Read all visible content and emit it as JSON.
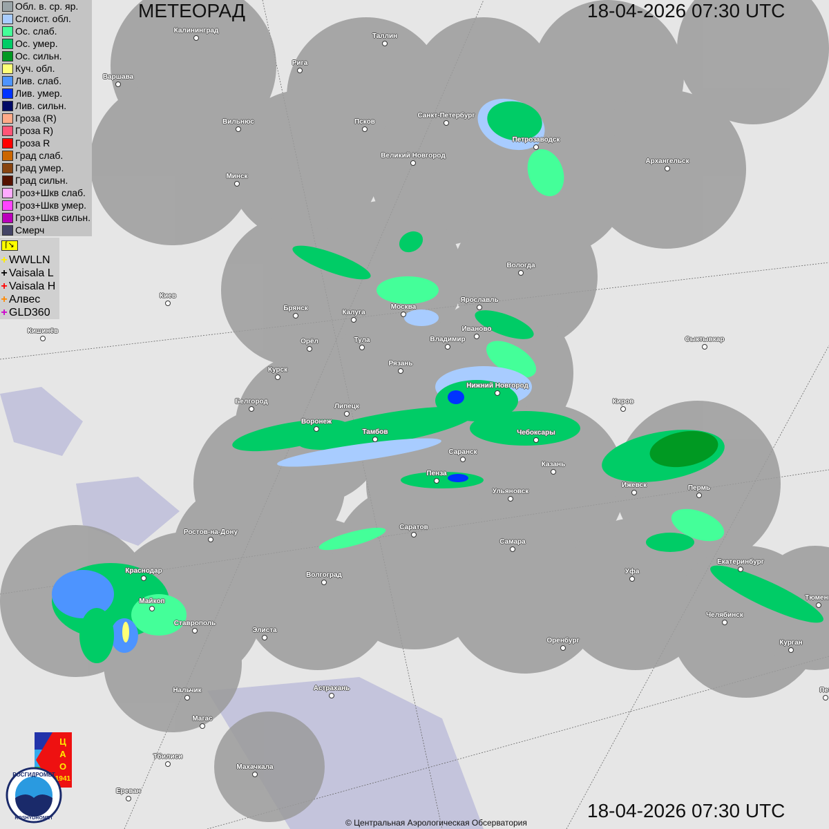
{
  "header": {
    "title": "МЕТЕОРАД",
    "datetime_top": "18-04-2026  07:30 UTC",
    "datetime_bottom": "18-04-2026  07:30 UTC"
  },
  "legend": [
    {
      "label": "Обл. в. ср. яр.",
      "color": "#9aa4a8"
    },
    {
      "label": "Слоист. обл.",
      "color": "#a8ccff"
    },
    {
      "label": "Ос. слаб.",
      "color": "#44ff99"
    },
    {
      "label": "Ос. умер.",
      "color": "#00cc66"
    },
    {
      "label": "Ос. сильн.",
      "color": "#009922"
    },
    {
      "label": "Куч. обл.",
      "color": "#ffff77"
    },
    {
      "label": "Лив. слаб.",
      "color": "#4d94ff"
    },
    {
      "label": "Лив. умер.",
      "color": "#0033ff"
    },
    {
      "label": "Лив. сильн.",
      "color": "#000a66"
    },
    {
      "label": "Гроза (R)",
      "color": "#ffaa88"
    },
    {
      "label": "Гроза R)",
      "color": "#ff5577"
    },
    {
      "label": "Гроза R",
      "color": "#ff0000"
    },
    {
      "label": "Град слаб.",
      "color": "#cc6600"
    },
    {
      "label": "Град умер.",
      "color": "#884411"
    },
    {
      "label": "Град сильн.",
      "color": "#551100"
    },
    {
      "label": "Гроз+Шкв слаб.",
      "color": "#ffaaff"
    },
    {
      "label": "Гроз+Шкв умер.",
      "color": "#ff44ff"
    },
    {
      "label": "Гроз+Шкв сильн.",
      "color": "#bb00bb"
    },
    {
      "label": "Смерч",
      "color": "#444466"
    }
  ],
  "lightning": [
    {
      "label": "WWLLN",
      "color": "#ffee00"
    },
    {
      "label": "Vaisala L",
      "color": "#000000"
    },
    {
      "label": "Vaisala H",
      "color": "#ff0000"
    },
    {
      "label": "Алвес",
      "color": "#ff8800"
    },
    {
      "label": "GLD360",
      "color": "#cc00cc"
    }
  ],
  "cities": [
    "Калининград",
    "Таллин",
    "Рига",
    "Варшава",
    "Санкт-Петербург",
    "Петрозаводск",
    "Вильнюс",
    "Псков",
    "Великий Новгород",
    "Архангельск",
    "Минск",
    "Вологда",
    "Ярославль",
    "Москва",
    "Калуга",
    "Брянск",
    "Киев",
    "Иваново",
    "Владимир",
    "Тула",
    "Орёл",
    "Кишинёв",
    "Сыктывкар",
    "Рязань",
    "Курск",
    "Нижний Новгород",
    "Киров",
    "Белгород",
    "Липецк",
    "Воронеж",
    "Тамбов",
    "Чебоксары",
    "Саранск",
    "Казань",
    "Пенза",
    "Ижевск",
    "Пермь",
    "Ульяновск",
    "Ростов-на-Дону",
    "Саратов",
    "Самара",
    "Екатеринбург",
    "Краснодар",
    "Волгоград",
    "Уфа",
    "Майкоп",
    "Тюмень",
    "Челябинск",
    "Ставрополь",
    "Элиста",
    "Оренбург",
    "Курган",
    "Нальчик",
    "Астрахань",
    "Пет",
    "Магас",
    "Тбилиси",
    "Махачкала",
    "Ереван"
  ],
  "logos": {
    "cao": "ЦАО 1941",
    "roshydromet": "РОСГИДРОМЕТ ROSHYDROMET"
  },
  "footer": {
    "copyright": "© Центральная Аэрологическая Обсерватория"
  }
}
